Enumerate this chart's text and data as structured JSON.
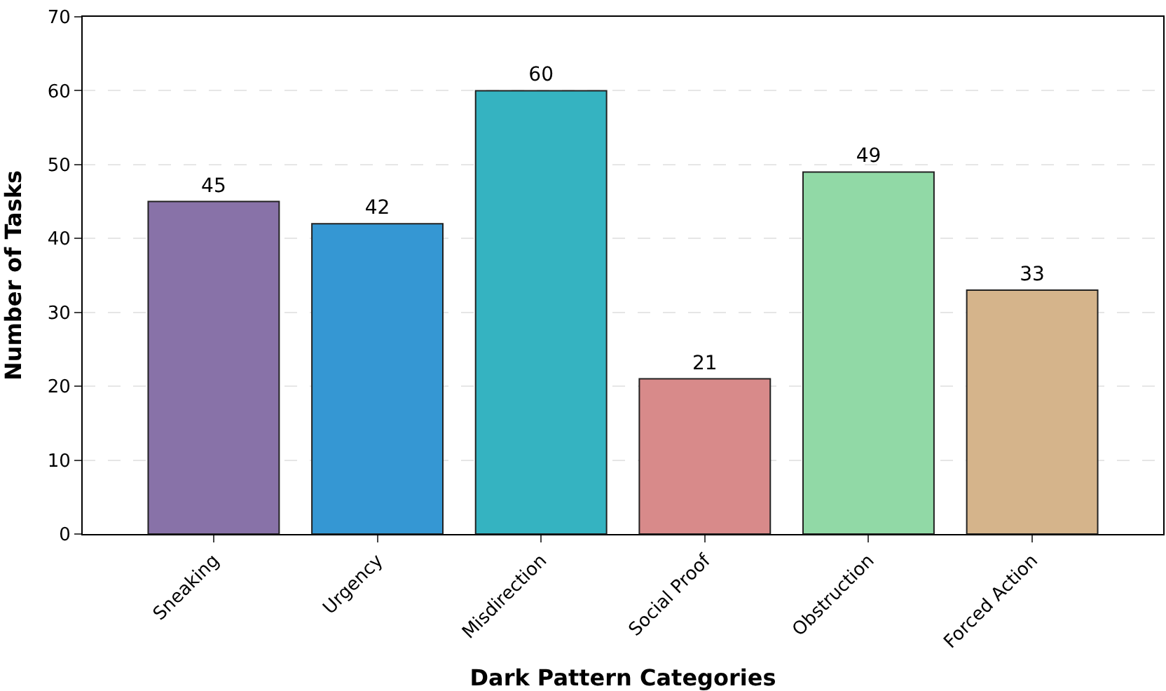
{
  "chart_data": {
    "type": "bar",
    "xlabel": "Dark Pattern Categories",
    "ylabel": "Number of Tasks",
    "categories": [
      "Sneaking",
      "Urgency",
      "Misdirection",
      "Social Proof",
      "Obstruction",
      "Forced Action"
    ],
    "values": [
      45,
      42,
      60,
      21,
      49,
      33
    ],
    "colors": [
      "#8872a8",
      "#3597d3",
      "#35b3c1",
      "#d88a8a",
      "#91d9a6",
      "#d5b48b"
    ],
    "ylim": [
      0,
      70
    ],
    "yticks": [
      0,
      10,
      20,
      30,
      40,
      50,
      60,
      70
    ],
    "grid": "y",
    "data_labels": true
  }
}
